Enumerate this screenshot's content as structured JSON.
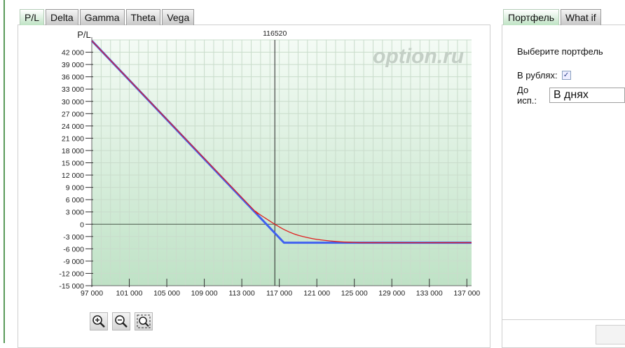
{
  "left_tabs": [
    {
      "label": "P/L",
      "active": true
    },
    {
      "label": "Delta"
    },
    {
      "label": "Gamma"
    },
    {
      "label": "Theta"
    },
    {
      "label": "Vega"
    }
  ],
  "right_tabs": [
    {
      "label": "Портфель",
      "active": true
    },
    {
      "label": "What if"
    }
  ],
  "right_panel": {
    "select_portfolio": "Выберите портфель",
    "rubles_label": "В рублях:",
    "rubles_checked": true,
    "expiry_label": "До исп.:",
    "expiry_value": "В днях"
  },
  "watermark": "option.ru",
  "zoom_buttons": [
    "zoom-in-icon",
    "zoom-out-icon",
    "zoom-selection-icon"
  ],
  "chart_data": {
    "type": "line",
    "ylabel": "P/L",
    "xlim": [
      97000,
      137500
    ],
    "ylim": [
      -15000,
      45000
    ],
    "x_ticks": [
      97000,
      101000,
      105000,
      109000,
      113000,
      117000,
      121000,
      125000,
      129000,
      133000,
      137000
    ],
    "x_tick_labels": [
      "97 000",
      "101 000",
      "105 000",
      "109 000",
      "113 000",
      "117 000",
      "121 000",
      "125 000",
      "129 000",
      "133 000",
      "137 000"
    ],
    "y_ticks": [
      42000,
      39000,
      36000,
      33000,
      30000,
      27000,
      24000,
      21000,
      18000,
      15000,
      12000,
      9000,
      6000,
      3000,
      0,
      -3000,
      -6000,
      -9000,
      -12000,
      -15000
    ],
    "y_tick_labels": [
      "42 000",
      "39 000",
      "36 000",
      "33 000",
      "30 000",
      "27 000",
      "24 000",
      "21 000",
      "18 000",
      "15 000",
      "12 000",
      "9 000",
      "6 000",
      "3 000",
      "0",
      "-3 000",
      "-6 000",
      "-9 000",
      "-12 000",
      "-15 000"
    ],
    "grid": true,
    "marker_line": {
      "x": 116520,
      "label": "116520"
    },
    "series": [
      {
        "color": "#4060f0",
        "points": [
          [
            97000,
            44800
          ],
          [
            117500,
            -4500
          ],
          [
            137500,
            -4500
          ]
        ]
      },
      {
        "color": "#e02020",
        "points": [
          [
            97000,
            44800
          ],
          [
            113000,
            6500
          ],
          [
            114500,
            3100
          ],
          [
            115500,
            1500
          ],
          [
            116520,
            0
          ],
          [
            117500,
            -1300
          ],
          [
            118500,
            -2300
          ],
          [
            119500,
            -3000
          ],
          [
            121000,
            -3700
          ],
          [
            123000,
            -4200
          ],
          [
            125000,
            -4450
          ],
          [
            127000,
            -4500
          ],
          [
            137500,
            -4500
          ]
        ]
      }
    ],
    "colors": {
      "plot_bg_top": "#f4fbf5",
      "plot_bg_bottom": "#bfe2c6",
      "grid": "#c9dccb"
    }
  }
}
